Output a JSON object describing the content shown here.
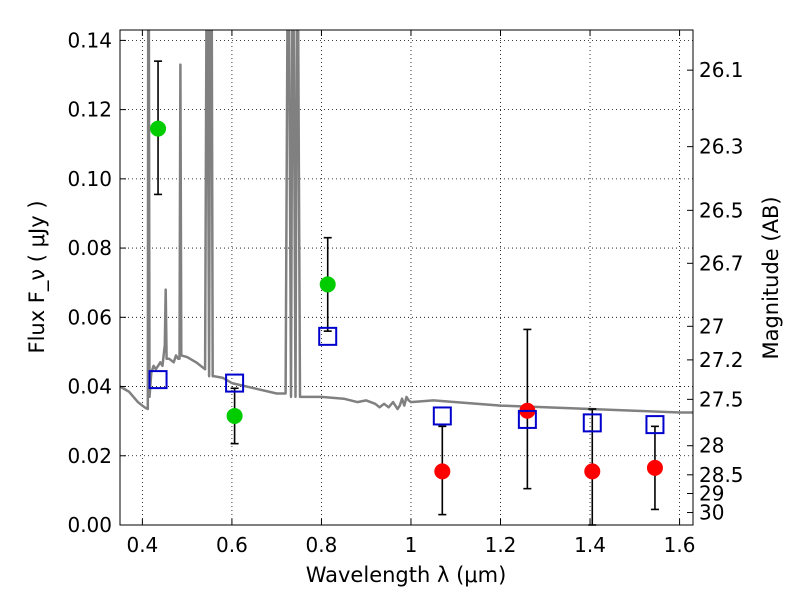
{
  "chart_data": {
    "type": "scatter",
    "title": "",
    "xlabel": "Wavelength  λ (μm)",
    "ylabel": "Flux  F_ν  ( μJy )",
    "ylabel_right": "Magnitude (AB)",
    "xlim": [
      0.35,
      1.63
    ],
    "ylim": [
      0.0,
      0.143
    ],
    "grid": true,
    "grid_style": "dotted",
    "x_ticks": [
      0.4,
      0.6,
      0.8,
      1.0,
      1.2,
      1.4,
      1.6
    ],
    "x_tick_labels": [
      "0.4",
      "0.6",
      "0.8",
      "1",
      "1.2",
      "1.4",
      "1.6"
    ],
    "y_ticks": [
      0.0,
      0.02,
      0.04,
      0.06,
      0.08,
      0.1,
      0.12,
      0.14
    ],
    "y_tick_labels": [
      "0.00",
      "0.02",
      "0.04",
      "0.06",
      "0.08",
      "0.10",
      "0.12",
      "0.14"
    ],
    "right_axis_ticks": [
      {
        "label": "26.1",
        "flux": 0.1314
      },
      {
        "label": "26.3",
        "flux": 0.1093
      },
      {
        "label": "26.5",
        "flux": 0.0909
      },
      {
        "label": "26.7",
        "flux": 0.0756
      },
      {
        "label": "27",
        "flux": 0.0574
      },
      {
        "label": "27.2",
        "flux": 0.0477
      },
      {
        "label": "27.5",
        "flux": 0.0363
      },
      {
        "label": "28",
        "flux": 0.0229
      },
      {
        "label": "28.5",
        "flux": 0.0145
      },
      {
        "label": "29",
        "flux": 0.0091
      },
      {
        "label": "30",
        "flux": 0.0036
      }
    ],
    "series": [
      {
        "marker": "circle",
        "color": "#00cc00",
        "points": [
          {
            "x": 0.435,
            "y": 0.1145,
            "ylo": 0.0955,
            "yhi": 0.134
          },
          {
            "x": 0.606,
            "y": 0.0315,
            "ylo": 0.0235,
            "yhi": 0.0395
          },
          {
            "x": 0.814,
            "y": 0.0695,
            "ylo": 0.056,
            "yhi": 0.083
          }
        ]
      },
      {
        "marker": "circle",
        "color": "#ff0000",
        "points": [
          {
            "x": 1.07,
            "y": 0.0155,
            "ylo": 0.003,
            "yhi": 0.0285
          },
          {
            "x": 1.26,
            "y": 0.033,
            "ylo": 0.0105,
            "yhi": 0.0565
          },
          {
            "x": 1.405,
            "y": 0.0155,
            "ylo": 0.0,
            "yhi": 0.0335
          },
          {
            "x": 1.545,
            "y": 0.0165,
            "ylo": 0.0045,
            "yhi": 0.0285
          }
        ]
      },
      {
        "marker": "open-square",
        "color": "#0000cc",
        "points": [
          {
            "x": 0.435,
            "y": 0.042
          },
          {
            "x": 0.606,
            "y": 0.041
          },
          {
            "x": 0.814,
            "y": 0.0545
          },
          {
            "x": 1.07,
            "y": 0.0315
          },
          {
            "x": 1.26,
            "y": 0.0305
          },
          {
            "x": 1.405,
            "y": 0.0295
          },
          {
            "x": 1.545,
            "y": 0.029
          }
        ]
      }
    ],
    "model_spectrum": {
      "color": "#808080",
      "points": [
        [
          0.35,
          0.04
        ],
        [
          0.37,
          0.0385
        ],
        [
          0.39,
          0.0355
        ],
        [
          0.405,
          0.034
        ],
        [
          0.412,
          0.0335
        ],
        [
          0.413,
          0.143
        ],
        [
          0.4145,
          0.143
        ],
        [
          0.416,
          0.037
        ],
        [
          0.42,
          0.044
        ],
        [
          0.425,
          0.046
        ],
        [
          0.43,
          0.045
        ],
        [
          0.435,
          0.046
        ],
        [
          0.44,
          0.047
        ],
        [
          0.445,
          0.046
        ],
        [
          0.45,
          0.052
        ],
        [
          0.452,
          0.068
        ],
        [
          0.454,
          0.048
        ],
        [
          0.46,
          0.048
        ],
        [
          0.47,
          0.047
        ],
        [
          0.475,
          0.049
        ],
        [
          0.48,
          0.048
        ],
        [
          0.483,
          0.048
        ],
        [
          0.485,
          0.133
        ],
        [
          0.487,
          0.049
        ],
        [
          0.5,
          0.0485
        ],
        [
          0.52,
          0.047
        ],
        [
          0.54,
          0.045
        ],
        [
          0.543,
          0.143
        ],
        [
          0.546,
          0.143
        ],
        [
          0.549,
          0.043
        ],
        [
          0.551,
          0.143
        ],
        [
          0.553,
          0.143
        ],
        [
          0.555,
          0.143
        ],
        [
          0.557,
          0.043
        ],
        [
          0.56,
          0.043
        ],
        [
          0.58,
          0.0425
        ],
        [
          0.6,
          0.041
        ],
        [
          0.65,
          0.0395
        ],
        [
          0.7,
          0.038
        ],
        [
          0.72,
          0.038
        ],
        [
          0.724,
          0.143
        ],
        [
          0.728,
          0.143
        ],
        [
          0.732,
          0.037
        ],
        [
          0.735,
          0.143
        ],
        [
          0.738,
          0.143
        ],
        [
          0.742,
          0.037
        ],
        [
          0.745,
          0.143
        ],
        [
          0.748,
          0.143
        ],
        [
          0.752,
          0.037
        ],
        [
          0.8,
          0.037
        ],
        [
          0.85,
          0.0365
        ],
        [
          0.88,
          0.0355
        ],
        [
          0.9,
          0.036
        ],
        [
          0.92,
          0.035
        ],
        [
          0.93,
          0.034
        ],
        [
          0.94,
          0.035
        ],
        [
          0.95,
          0.034
        ],
        [
          0.96,
          0.0355
        ],
        [
          0.97,
          0.0335
        ],
        [
          0.975,
          0.0345
        ],
        [
          0.98,
          0.0365
        ],
        [
          0.985,
          0.0345
        ],
        [
          0.99,
          0.037
        ],
        [
          0.995,
          0.036
        ],
        [
          1.0,
          0.0355
        ],
        [
          1.05,
          0.036
        ],
        [
          1.1,
          0.0355
        ],
        [
          1.2,
          0.0345
        ],
        [
          1.3,
          0.034
        ],
        [
          1.4,
          0.0335
        ],
        [
          1.5,
          0.033
        ],
        [
          1.6,
          0.0325
        ],
        [
          1.63,
          0.0325
        ]
      ]
    }
  }
}
